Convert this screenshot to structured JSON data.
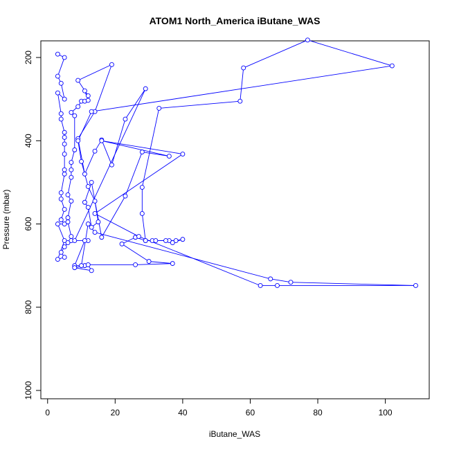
{
  "chart_data": {
    "type": "line",
    "title": "ATOM1 North_America iButane_WAS",
    "xlabel": "iButane_WAS",
    "ylabel": "Pressure (mbar)",
    "xlim": [
      -2,
      113
    ],
    "ylim": [
      1020,
      160
    ],
    "y_reversed": true,
    "x_ticks": [
      "0",
      "20",
      "40",
      "60",
      "80",
      "100"
    ],
    "y_ticks": [
      "200",
      "400",
      "600",
      "800",
      "1000"
    ],
    "grid": false,
    "legend": "none",
    "line_color": "#0000ff",
    "marker": "open-circle",
    "series": [
      {
        "points": [
          [
            3,
            192
          ],
          [
            5,
            200
          ],
          [
            3,
            245
          ],
          [
            4,
            262
          ],
          [
            5,
            300
          ],
          [
            3,
            285
          ],
          [
            4,
            335
          ],
          [
            4,
            348
          ],
          [
            5,
            380
          ],
          [
            5,
            392
          ],
          [
            5,
            408
          ],
          [
            5,
            432
          ],
          [
            5,
            470
          ],
          [
            5,
            480
          ],
          [
            4,
            525
          ],
          [
            4,
            540
          ],
          [
            5,
            565
          ],
          [
            4,
            590
          ],
          [
            5,
            600
          ],
          [
            3,
            600
          ],
          [
            5,
            640
          ],
          [
            3,
            685
          ],
          [
            5,
            680
          ],
          [
            4,
            668
          ],
          [
            5,
            655
          ],
          [
            6,
            645
          ],
          [
            7,
            640
          ],
          [
            7,
            630
          ],
          [
            6,
            595
          ],
          [
            6,
            585
          ],
          [
            7,
            545
          ],
          [
            6,
            530
          ],
          [
            7,
            488
          ],
          [
            7,
            470
          ],
          [
            7,
            452
          ],
          [
            8,
            422
          ],
          [
            8,
            340
          ],
          [
            7,
            332
          ],
          [
            9,
            318
          ],
          [
            10,
            305
          ],
          [
            11,
            305
          ],
          [
            12,
            303
          ],
          [
            11,
            280
          ],
          [
            12,
            292
          ],
          [
            9,
            255
          ],
          [
            19,
            217
          ],
          [
            14,
            330
          ],
          [
            9,
            395
          ],
          [
            11,
            480
          ],
          [
            14,
            425
          ],
          [
            16,
            398
          ],
          [
            19,
            458
          ],
          [
            23,
            348
          ],
          [
            29,
            275
          ],
          [
            8,
            640
          ],
          [
            12,
            640
          ],
          [
            11,
            640
          ],
          [
            8,
            700
          ],
          [
            11,
            700
          ],
          [
            8,
            705
          ],
          [
            13,
            712
          ],
          [
            12,
            698
          ],
          [
            26,
            698
          ],
          [
            37,
            695
          ],
          [
            30,
            690
          ],
          [
            22,
            648
          ],
          [
            26,
            632
          ],
          [
            29,
            640
          ],
          [
            31,
            640
          ],
          [
            32,
            640
          ],
          [
            36,
            640
          ],
          [
            38,
            640
          ],
          [
            40,
            637
          ],
          [
            37,
            645
          ],
          [
            35,
            640
          ],
          [
            29,
            640
          ],
          [
            28,
            575
          ],
          [
            28,
            512
          ],
          [
            33,
            322
          ],
          [
            57,
            305
          ],
          [
            58,
            225
          ],
          [
            77,
            158
          ],
          [
            102,
            220
          ],
          [
            13,
            330
          ],
          [
            9,
            400
          ],
          [
            10,
            450
          ],
          [
            12,
            510
          ],
          [
            14,
            545
          ],
          [
            15,
            595
          ],
          [
            13,
            608
          ],
          [
            12,
            560
          ],
          [
            11,
            548
          ],
          [
            13,
            500
          ],
          [
            16,
            632
          ],
          [
            23,
            533
          ],
          [
            28,
            427
          ],
          [
            36,
            437
          ],
          [
            16,
            400
          ],
          [
            40,
            432
          ],
          [
            14,
            575
          ],
          [
            27,
            630
          ],
          [
            63,
            748
          ],
          [
            68,
            748
          ],
          [
            109,
            748
          ],
          [
            72,
            740
          ],
          [
            66,
            732
          ],
          [
            14,
            620
          ],
          [
            12,
            600
          ],
          [
            10,
            700
          ]
        ]
      }
    ]
  }
}
